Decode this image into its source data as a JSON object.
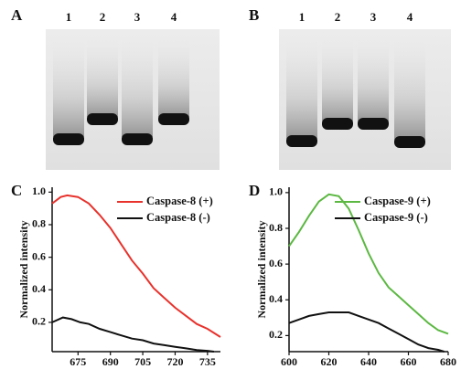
{
  "panels": {
    "A": {
      "label": "A",
      "lanes": [
        "1",
        "2",
        "3",
        "4"
      ]
    },
    "B": {
      "label": "B",
      "lanes": [
        "1",
        "2",
        "3",
        "4"
      ]
    }
  },
  "chart_data": [
    {
      "type": "line",
      "panel_label": "C",
      "y_label": "Normalized intensity",
      "xlim": [
        663,
        741
      ],
      "xticks": [
        675,
        690,
        705,
        720,
        735
      ],
      "ylim": [
        0.02,
        1.03
      ],
      "yticks": [
        0.2,
        0.4,
        0.6,
        0.8,
        {
          "value": 1,
          "label": "1.0"
        }
      ],
      "series": [
        {
          "name": "Caspase-8 (+)",
          "color": "#e8322c",
          "x": [
            663,
            667,
            670,
            675,
            680,
            685,
            690,
            695,
            700,
            705,
            710,
            715,
            720,
            725,
            730,
            735,
            741
          ],
          "values": [
            0.93,
            0.97,
            0.98,
            0.97,
            0.93,
            0.86,
            0.78,
            0.68,
            0.58,
            0.5,
            0.41,
            0.35,
            0.29,
            0.24,
            0.19,
            0.16,
            0.11
          ]
        },
        {
          "name": "Caspase-8 (-)",
          "color": "#111111",
          "x": [
            663,
            668,
            672,
            676,
            680,
            685,
            690,
            695,
            700,
            705,
            710,
            715,
            720,
            725,
            730,
            735,
            738
          ],
          "values": [
            0.2,
            0.23,
            0.22,
            0.2,
            0.19,
            0.16,
            0.14,
            0.12,
            0.1,
            0.09,
            0.07,
            0.06,
            0.05,
            0.04,
            0.03,
            0.025,
            0.02
          ]
        }
      ]
    },
    {
      "type": "line",
      "panel_label": "D",
      "y_label": "Normalized intensity",
      "xlim": [
        600,
        680
      ],
      "xticks": [
        600,
        620,
        640,
        660,
        680
      ],
      "ylim": [
        0.11,
        1.03
      ],
      "yticks": [
        0.2,
        0.4,
        0.6,
        0.8,
        {
          "value": 1,
          "label": "1.0"
        }
      ],
      "series": [
        {
          "name": "Caspase-9 (+)",
          "color": "#5cb842",
          "x": [
            600,
            605,
            610,
            615,
            620,
            625,
            630,
            635,
            640,
            645,
            650,
            655,
            660,
            665,
            670,
            675,
            680
          ],
          "values": [
            0.7,
            0.78,
            0.87,
            0.95,
            0.99,
            0.98,
            0.91,
            0.79,
            0.66,
            0.55,
            0.47,
            0.42,
            0.37,
            0.32,
            0.27,
            0.23,
            0.21
          ]
        },
        {
          "name": "Caspase-9 (-)",
          "color": "#111111",
          "x": [
            600,
            605,
            610,
            615,
            620,
            625,
            630,
            635,
            640,
            645,
            650,
            655,
            660,
            665,
            670,
            675,
            678
          ],
          "values": [
            0.27,
            0.29,
            0.31,
            0.32,
            0.33,
            0.33,
            0.33,
            0.31,
            0.29,
            0.27,
            0.24,
            0.21,
            0.18,
            0.15,
            0.13,
            0.12,
            0.11
          ]
        }
      ]
    }
  ]
}
